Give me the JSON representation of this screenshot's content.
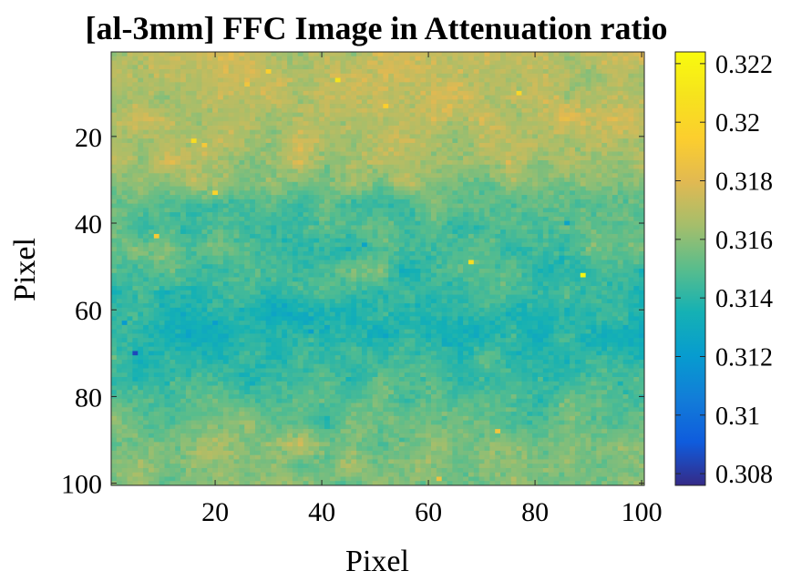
{
  "chart_data": {
    "type": "heatmap",
    "title": "[al-3mm] FFC Image in Attenuation ratio",
    "xlabel": "Pixel",
    "ylabel": "Pixel",
    "xlim": [
      0.5,
      100.5
    ],
    "ylim": [
      0.5,
      100.5
    ],
    "y_direction": "reversed (1 at top)",
    "grid": "off",
    "x_ticks": [
      "20",
      "40",
      "60",
      "80",
      "100"
    ],
    "y_ticks": [
      "20",
      "40",
      "60",
      "80",
      "100"
    ],
    "colormap": "parula",
    "colorbar": {
      "placement": "right",
      "range": [
        0.3076,
        0.3224
      ],
      "ticks": [
        "0.308",
        "0.31",
        "0.312",
        "0.314",
        "0.316",
        "0.318",
        "0.32",
        "0.322"
      ]
    },
    "grid_size": [
      100,
      100
    ],
    "row_block_means": [
      {
        "rows": "1-10",
        "mean": 0.317
      },
      {
        "rows": "11-20",
        "mean": 0.3169
      },
      {
        "rows": "21-30",
        "mean": 0.3166
      },
      {
        "rows": "31-40",
        "mean": 0.3148
      },
      {
        "rows": "41-50",
        "mean": 0.3148
      },
      {
        "rows": "51-60",
        "mean": 0.3146
      },
      {
        "rows": "61-70",
        "mean": 0.3136
      },
      {
        "rows": "71-80",
        "mean": 0.3145
      },
      {
        "rows": "81-90",
        "mean": 0.3152
      },
      {
        "rows": "91-100",
        "mean": 0.316
      }
    ],
    "hotspots": [
      {
        "x": 16,
        "y": 21,
        "value": 0.3205
      },
      {
        "x": 43,
        "y": 7,
        "value": 0.321
      },
      {
        "x": 77,
        "y": 10,
        "value": 0.32
      },
      {
        "x": 52,
        "y": 13,
        "value": 0.3195
      },
      {
        "x": 20,
        "y": 33,
        "value": 0.3198
      },
      {
        "x": 30,
        "y": 5,
        "value": 0.3195
      },
      {
        "x": 9,
        "y": 43,
        "value": 0.3192
      },
      {
        "x": 26,
        "y": 8,
        "value": 0.3188
      },
      {
        "x": 89,
        "y": 52,
        "value": 0.322
      },
      {
        "x": 68,
        "y": 49,
        "value": 0.3205
      },
      {
        "x": 18,
        "y": 22,
        "value": 0.319
      },
      {
        "x": 73,
        "y": 88,
        "value": 0.3188
      },
      {
        "x": 62,
        "y": 99,
        "value": 0.3186
      }
    ],
    "coldspots": [
      {
        "x": 5,
        "y": 70,
        "value": 0.3085
      },
      {
        "x": 3,
        "y": 63,
        "value": 0.312
      },
      {
        "x": 20,
        "y": 63,
        "value": 0.3122
      },
      {
        "x": 38,
        "y": 65,
        "value": 0.3123
      },
      {
        "x": 48,
        "y": 45,
        "value": 0.3125
      },
      {
        "x": 86,
        "y": 40,
        "value": 0.3125
      }
    ]
  }
}
